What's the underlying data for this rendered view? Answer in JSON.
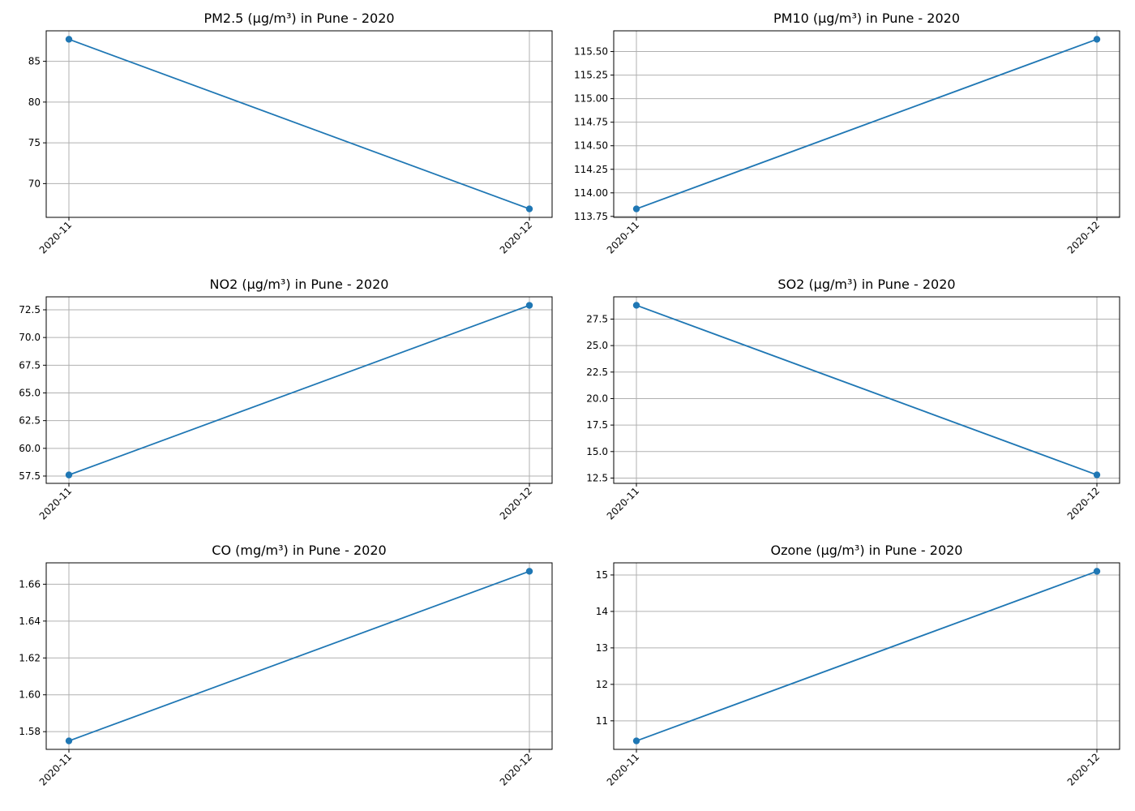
{
  "chart_data": [
    {
      "type": "line",
      "title": "PM2.5 (µg/m³) in Pune - 2020",
      "xlabel": "",
      "ylabel": "",
      "categories": [
        "2020-11",
        "2020-12"
      ],
      "series": [
        {
          "values": [
            87.7,
            66.9
          ]
        }
      ],
      "yticks": [
        70,
        75,
        80,
        85
      ],
      "ytick_labels": [
        "70",
        "75",
        "80",
        "85"
      ],
      "ylim": [
        65.86,
        88.74
      ],
      "grid": true,
      "color": "#1f77b4"
    },
    {
      "type": "line",
      "title": "PM10 (µg/m³) in Pune - 2020",
      "xlabel": "",
      "ylabel": "",
      "categories": [
        "2020-11",
        "2020-12"
      ],
      "series": [
        {
          "values": [
            113.83,
            115.63
          ]
        }
      ],
      "yticks": [
        113.75,
        114.0,
        114.25,
        114.5,
        114.75,
        115.0,
        115.25,
        115.5
      ],
      "ytick_labels": [
        "113.75",
        "114.00",
        "114.25",
        "114.50",
        "114.75",
        "115.00",
        "115.25",
        "115.50"
      ],
      "ylim": [
        113.74,
        115.72
      ],
      "grid": true,
      "color": "#1f77b4"
    },
    {
      "type": "line",
      "title": "NO2 (µg/m³) in Pune - 2020",
      "xlabel": "",
      "ylabel": "",
      "categories": [
        "2020-11",
        "2020-12"
      ],
      "series": [
        {
          "values": [
            57.6,
            72.9
          ]
        }
      ],
      "yticks": [
        57.5,
        60.0,
        62.5,
        65.0,
        67.5,
        70.0,
        72.5
      ],
      "ytick_labels": [
        "57.5",
        "60.0",
        "62.5",
        "65.0",
        "67.5",
        "70.0",
        "72.5"
      ],
      "ylim": [
        56.84,
        73.67
      ],
      "grid": true,
      "color": "#1f77b4"
    },
    {
      "type": "line",
      "title": "SO2 (µg/m³) in Pune - 2020",
      "xlabel": "",
      "ylabel": "",
      "categories": [
        "2020-11",
        "2020-12"
      ],
      "series": [
        {
          "values": [
            28.8,
            12.8
          ]
        }
      ],
      "yticks": [
        12.5,
        15.0,
        17.5,
        20.0,
        22.5,
        25.0,
        27.5
      ],
      "ytick_labels": [
        "12.5",
        "15.0",
        "17.5",
        "20.0",
        "22.5",
        "25.0",
        "27.5"
      ],
      "ylim": [
        12.0,
        29.6
      ],
      "grid": true,
      "color": "#1f77b4"
    },
    {
      "type": "line",
      "title": "CO (mg/m³) in Pune - 2020",
      "xlabel": "",
      "ylabel": "",
      "categories": [
        "2020-11",
        "2020-12"
      ],
      "series": [
        {
          "values": [
            1.575,
            1.667
          ]
        }
      ],
      "yticks": [
        1.58,
        1.6,
        1.62,
        1.64,
        1.66
      ],
      "ytick_labels": [
        "1.58",
        "1.60",
        "1.62",
        "1.64",
        "1.66"
      ],
      "ylim": [
        1.5704,
        1.6716
      ],
      "grid": true,
      "color": "#1f77b4"
    },
    {
      "type": "line",
      "title": "Ozone (µg/m³) in Pune - 2020",
      "xlabel": "",
      "ylabel": "",
      "categories": [
        "2020-11",
        "2020-12"
      ],
      "series": [
        {
          "values": [
            10.45,
            15.1
          ]
        }
      ],
      "yticks": [
        11,
        12,
        13,
        14,
        15
      ],
      "ytick_labels": [
        "11",
        "12",
        "13",
        "14",
        "15"
      ],
      "ylim": [
        10.2175,
        15.3325
      ],
      "grid": true,
      "color": "#1f77b4"
    }
  ]
}
